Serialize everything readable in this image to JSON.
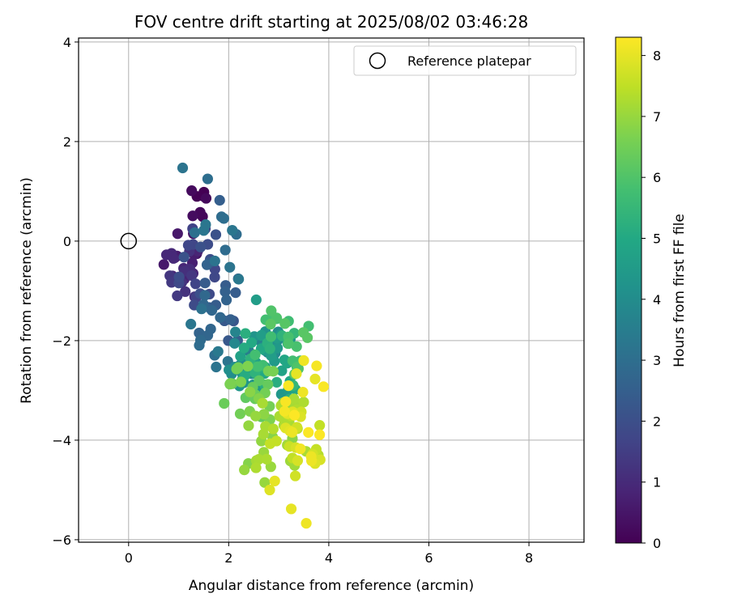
{
  "chart_data": {
    "type": "scatter",
    "title": "FOV centre drift starting at 2025/08/02 03:46:28",
    "xlabel": "Angular distance from reference (arcmin)",
    "ylabel": "Rotation from reference (arcmin)",
    "xlim": [
      -1.0,
      9.1
    ],
    "ylim": [
      -6.05,
      4.08
    ],
    "xticks": [
      0,
      2,
      4,
      6,
      8
    ],
    "yticks": [
      -6,
      -4,
      -2,
      0,
      2,
      4
    ],
    "xtick_labels": [
      "0",
      "2",
      "4",
      "6",
      "8"
    ],
    "ytick_labels": [
      "−6",
      "−4",
      "−2",
      "0",
      "2",
      "4"
    ],
    "grid": true,
    "colormap": "viridis",
    "colorbar": {
      "label": "Hours from first FF file",
      "range": [
        0,
        8.3
      ],
      "ticks": [
        0,
        1,
        2,
        3,
        4,
        5,
        6,
        7,
        8
      ],
      "tick_labels": [
        "0",
        "1",
        "2",
        "3",
        "4",
        "5",
        "6",
        "7",
        "8"
      ]
    },
    "legend": {
      "position": "top-right",
      "entries": [
        {
          "label": "Reference platepar",
          "marker": "open-circle",
          "x": 0,
          "y": 0
        }
      ]
    },
    "clusters": [
      {
        "t": 0.1,
        "n": 8,
        "x": [
          1.2,
          1.55
        ],
        "y": [
          0.35,
          1.1
        ]
      },
      {
        "t": 0.7,
        "n": 14,
        "x": [
          0.7,
          1.4
        ],
        "y": [
          -0.9,
          0.6
        ]
      },
      {
        "t": 1.2,
        "n": 14,
        "x": [
          0.7,
          1.35
        ],
        "y": [
          -1.35,
          -0.2
        ]
      },
      {
        "t": 1.8,
        "n": 18,
        "x": [
          1.0,
          1.9
        ],
        "y": [
          -1.3,
          0.5
        ]
      },
      {
        "t": 2.5,
        "n": 22,
        "x": [
          1.3,
          2.2
        ],
        "y": [
          -2.05,
          -0.4
        ]
      },
      {
        "t": 3.1,
        "n": 18,
        "x": [
          1.2,
          2.25
        ],
        "y": [
          -2.5,
          0.8
        ]
      },
      {
        "t": 3.8,
        "n": 24,
        "x": [
          2.0,
          3.0
        ],
        "y": [
          -2.7,
          -1.6
        ]
      },
      {
        "t": 4.5,
        "n": 26,
        "x": [
          2.2,
          3.3
        ],
        "y": [
          -3.1,
          -1.7
        ]
      },
      {
        "t": 5.2,
        "n": 24,
        "x": [
          2.3,
          3.4
        ],
        "y": [
          -3.2,
          -1.8
        ]
      },
      {
        "t": 5.9,
        "n": 22,
        "x": [
          2.5,
          3.6
        ],
        "y": [
          -2.7,
          -1.4
        ]
      },
      {
        "t": 6.4,
        "n": 22,
        "x": [
          1.9,
          2.9
        ],
        "y": [
          -3.6,
          -2.5
        ]
      },
      {
        "t": 7.0,
        "n": 26,
        "x": [
          2.3,
          3.4
        ],
        "y": [
          -4.6,
          -2.9
        ]
      },
      {
        "t": 7.5,
        "n": 24,
        "x": [
          2.6,
          3.9
        ],
        "y": [
          -4.4,
          -3.1
        ]
      },
      {
        "t": 8.0,
        "n": 26,
        "x": [
          3.1,
          3.95
        ],
        "y": [
          -4.9,
          -2.4
        ]
      }
    ],
    "outliers": [
      {
        "x": 1.08,
        "y": 1.47,
        "t": 3.2
      },
      {
        "x": 1.58,
        "y": 1.25,
        "t": 3.0
      },
      {
        "x": 1.82,
        "y": 0.82,
        "t": 2.5
      },
      {
        "x": 2.55,
        "y": -1.18,
        "t": 4.6
      },
      {
        "x": 2.85,
        "y": -1.4,
        "t": 6.0
      },
      {
        "x": 1.75,
        "y": -2.53,
        "t": 3.2
      },
      {
        "x": 2.72,
        "y": -4.85,
        "t": 7.0
      },
      {
        "x": 2.82,
        "y": -5.0,
        "t": 7.9
      },
      {
        "x": 3.25,
        "y": -5.38,
        "t": 8.0
      },
      {
        "x": 3.55,
        "y": -5.67,
        "t": 8.1
      },
      {
        "x": 2.92,
        "y": -4.82,
        "t": 8.0
      },
      {
        "x": 3.5,
        "y": -2.4,
        "t": 8.1
      }
    ]
  }
}
